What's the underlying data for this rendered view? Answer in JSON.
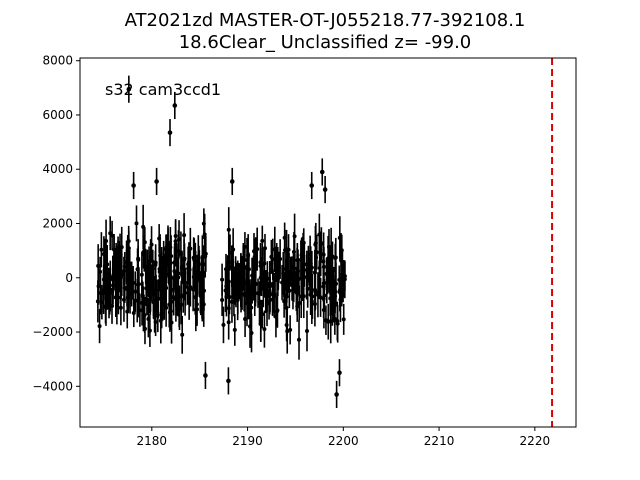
{
  "chart_data": {
    "type": "scatter",
    "title_line1": "AT2021zd  MASTER-OT-J055218.77-392108.1",
    "title_line2": "18.6Clear_ Unclassified z= -99.0",
    "annotation": "s32 cam3ccd1",
    "xlabel": "",
    "ylabel": "",
    "xlim": [
      2172.5,
      2224.3
    ],
    "ylim": [
      -5500,
      8100
    ],
    "x_ticks": [
      2180,
      2190,
      2200,
      2210,
      2220
    ],
    "y_ticks": [
      -4000,
      -2000,
      0,
      2000,
      4000,
      6000,
      8000
    ],
    "grid": false,
    "marker_color": "#000000",
    "vline": {
      "x": 2221.8,
      "color": "#dd0000",
      "style": "dashed"
    },
    "segments": [
      {
        "x_start": 2174.3,
        "x_end": 2185.7,
        "y_center": 0,
        "y_spread": 2200,
        "err": 650
      },
      {
        "x_start": 2187.3,
        "x_end": 2200.2,
        "y_center": -200,
        "y_spread": 2100,
        "err": 650
      }
    ],
    "highlighted_points": [
      {
        "x": 2177.6,
        "y": 6950,
        "err": 500
      },
      {
        "x": 2182.4,
        "y": 6350,
        "err": 500
      },
      {
        "x": 2181.9,
        "y": 5350,
        "err": 500
      },
      {
        "x": 2180.5,
        "y": 3550,
        "err": 500
      },
      {
        "x": 2178.1,
        "y": 3400,
        "err": 500
      },
      {
        "x": 2188.4,
        "y": 3550,
        "err": 500
      },
      {
        "x": 2197.8,
        "y": 3900,
        "err": 500
      },
      {
        "x": 2198.1,
        "y": 3250,
        "err": 500
      },
      {
        "x": 2196.7,
        "y": 3400,
        "err": 500
      },
      {
        "x": 2188.0,
        "y": -3800,
        "err": 500
      },
      {
        "x": 2199.3,
        "y": -4300,
        "err": 500
      },
      {
        "x": 2199.6,
        "y": -3500,
        "err": 500
      },
      {
        "x": 2185.6,
        "y": -3600,
        "err": 500
      }
    ]
  }
}
